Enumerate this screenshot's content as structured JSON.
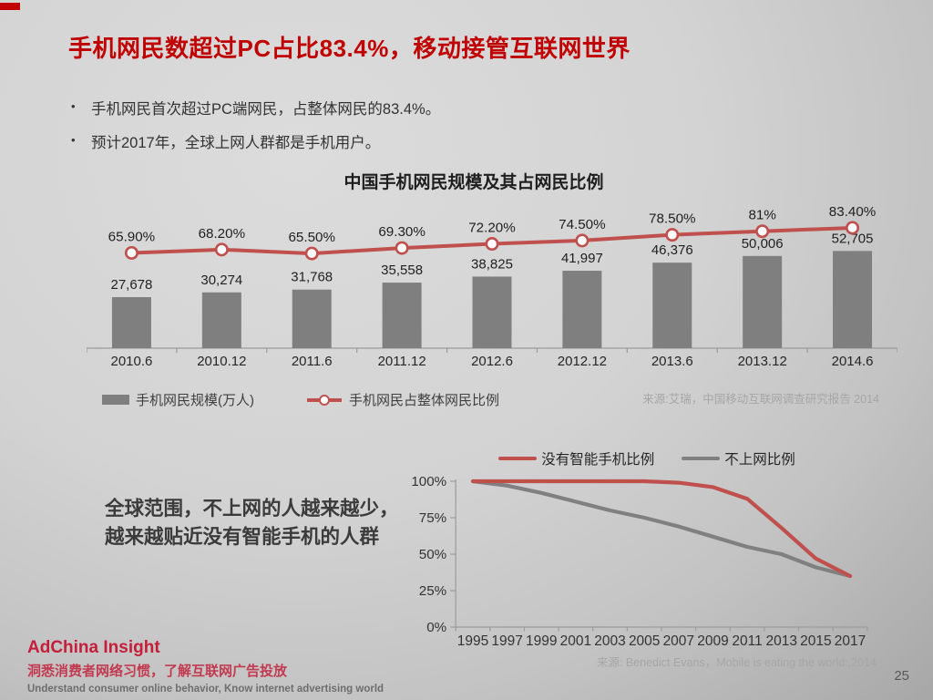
{
  "slide": {
    "title": "手机网民数超过PC占比83.4%，移动接管互联网世界",
    "bullets": [
      "手机网民首次超过PC端网民，占整体网民的83.4%。",
      "预计2017年，全球上网人群都是手机用户。"
    ],
    "page_number": "25"
  },
  "colors": {
    "title_red": "#C00000",
    "bar_gray": "#7F7F7F",
    "line_red": "#C0504D",
    "gray_line": "#808080",
    "axis_gray": "#9b9b9b",
    "label_dark": "#1f1f1f",
    "source_gray": "#A6A6A6",
    "brand_red": "#C41E3A"
  },
  "footer": {
    "brand": "AdChina Insight",
    "tagline_cn": "洞悉消费者网络习惯，了解互联网广告投放",
    "tagline_en": "Understand consumer online behavior, Know internet advertising world"
  },
  "chart_data": [
    {
      "type": "bar",
      "title": "中国手机网民规模及其占网民比例",
      "categories": [
        "2010.6",
        "2010.12",
        "2011.6",
        "2011.12",
        "2012.6",
        "2012.12",
        "2013.6",
        "2013.12",
        "2014.6"
      ],
      "series": [
        {
          "name": "手机网民规模(万人)",
          "kind": "bar",
          "values": [
            27678,
            30274,
            31768,
            35558,
            38825,
            41997,
            46376,
            50006,
            52705
          ],
          "labels": [
            "27,678",
            "30,274",
            "31,768",
            "35,558",
            "38,825",
            "41,997",
            "46,376",
            "50,006",
            "52,705"
          ]
        },
        {
          "name": "手机网民占整体网民比例",
          "kind": "line",
          "values": [
            65.9,
            68.2,
            65.5,
            69.3,
            72.2,
            74.5,
            78.5,
            81,
            83.4
          ],
          "labels": [
            "65.90%",
            "68.20%",
            "65.50%",
            "69.30%",
            "72.20%",
            "74.50%",
            "78.50%",
            "81%",
            "83.40%"
          ]
        }
      ],
      "legend_position": "bottom-left",
      "grid": false,
      "source": "来源:艾瑞，中国移动互联网调查研究报告 2014"
    },
    {
      "type": "line",
      "x": [
        1995,
        1997,
        1999,
        2001,
        2003,
        2005,
        2007,
        2009,
        2011,
        2013,
        2015,
        2017
      ],
      "series": [
        {
          "name": "没有智能手机比例",
          "color": "#C0504D",
          "values": [
            100,
            100,
            100,
            100,
            100,
            100,
            99,
            96,
            88,
            68,
            47,
            35
          ]
        },
        {
          "name": "不上网比例",
          "color": "#808080",
          "values": [
            100,
            97,
            92,
            86,
            80,
            75,
            69,
            62,
            55,
            50,
            41,
            35
          ]
        }
      ],
      "ylabels": [
        "0%",
        "25%",
        "50%",
        "75%",
        "100%"
      ],
      "ylim": [
        0,
        100
      ],
      "legend_position": "top",
      "grid": false,
      "note_lines": [
        "全球范围，不上网的人越来越少，",
        "越来越贴近没有智能手机的人群"
      ],
      "source": "来源: Benedict Evans，Mobile is eating the world:,2014"
    }
  ]
}
